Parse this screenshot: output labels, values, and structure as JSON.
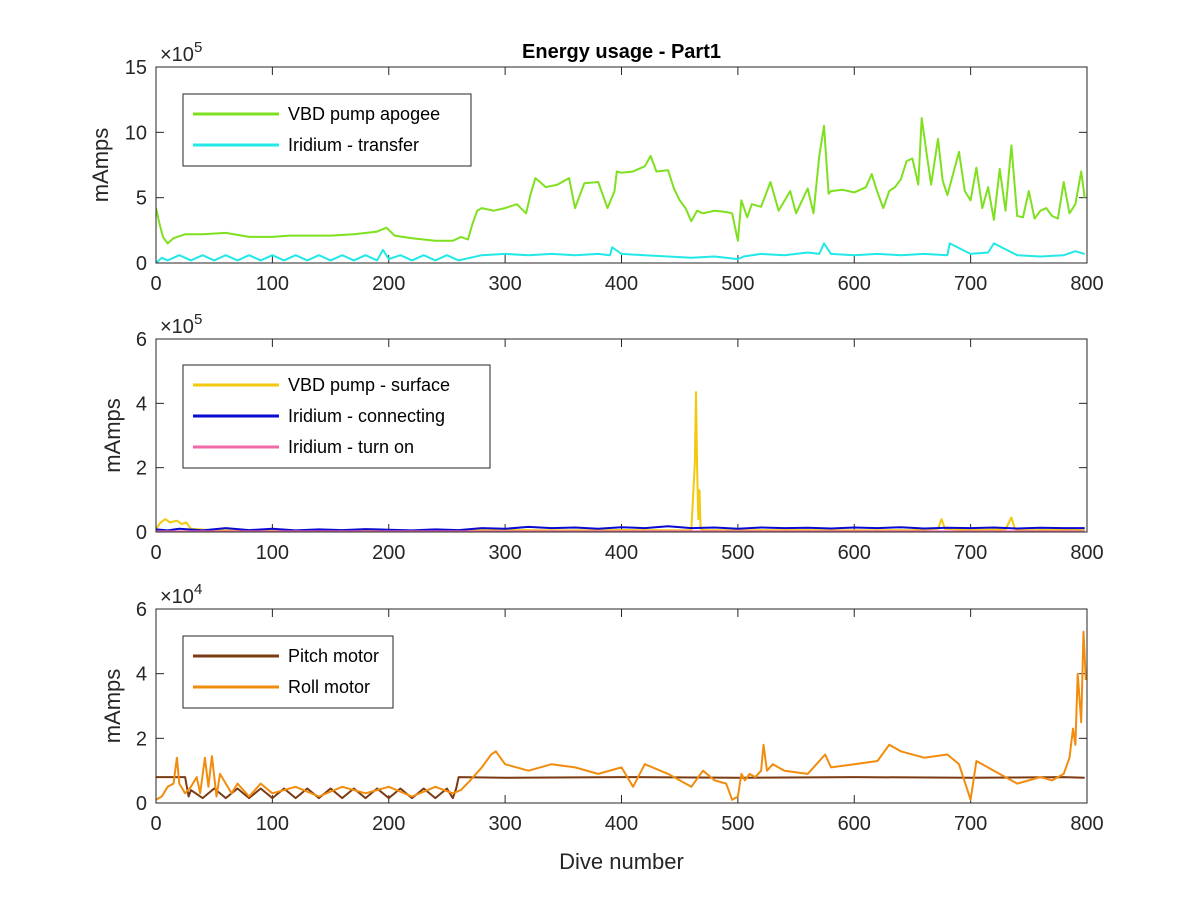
{
  "chart_data": [
    {
      "type": "line",
      "title": "Energy usage - Part1",
      "xlabel": "",
      "ylabel": "mAmps",
      "exponent": "5",
      "xlim": [
        0,
        800
      ],
      "ylim": [
        0,
        15
      ],
      "xticks": [
        "0",
        "100",
        "200",
        "300",
        "400",
        "500",
        "600",
        "700",
        "800"
      ],
      "yticks": [
        "0",
        "5",
        "10",
        "15"
      ],
      "grid": false,
      "legend_position": "top-left",
      "series": [
        {
          "name": "VBD pump apogee",
          "color": "#7fe01f",
          "x": [
            0,
            3,
            6,
            10,
            15,
            25,
            40,
            60,
            80,
            100,
            115,
            130,
            150,
            170,
            190,
            198,
            205,
            220,
            240,
            255,
            262,
            268,
            272,
            276,
            280,
            290,
            300,
            310,
            318,
            322,
            326,
            330,
            335,
            345,
            355,
            360,
            368,
            380,
            388,
            394,
            396,
            400,
            410,
            420,
            425,
            430,
            440,
            445,
            450,
            455,
            460,
            465,
            470,
            480,
            490,
            495,
            500,
            503,
            508,
            512,
            520,
            528,
            535,
            545,
            550,
            560,
            565,
            570,
            574,
            578,
            580,
            590,
            600,
            610,
            615,
            620,
            625,
            630,
            635,
            640,
            645,
            650,
            655,
            658,
            662,
            666,
            672,
            676,
            680,
            690,
            695,
            700,
            705,
            710,
            715,
            720,
            725,
            730,
            735,
            740,
            745,
            750,
            755,
            760,
            765,
            770,
            775,
            780,
            785,
            790,
            795,
            798
          ],
          "y": [
            4.2,
            3.0,
            2.0,
            1.5,
            1.9,
            2.2,
            2.2,
            2.3,
            2.0,
            2.0,
            2.1,
            2.1,
            2.1,
            2.2,
            2.4,
            2.7,
            2.1,
            1.9,
            1.7,
            1.7,
            2.0,
            1.8,
            3.0,
            4.0,
            4.2,
            4.0,
            4.2,
            4.5,
            3.8,
            5.3,
            6.5,
            6.2,
            5.8,
            6.0,
            6.5,
            4.2,
            6.1,
            6.2,
            4.2,
            5.5,
            7.0,
            6.9,
            7.0,
            7.4,
            8.2,
            7.0,
            7.1,
            5.7,
            4.8,
            4.2,
            3.2,
            4.0,
            3.8,
            4.0,
            3.9,
            3.8,
            1.7,
            4.8,
            3.5,
            4.5,
            4.3,
            6.2,
            4.0,
            5.5,
            3.8,
            5.7,
            3.8,
            8.2,
            10.5,
            5.3,
            5.5,
            5.6,
            5.4,
            5.8,
            6.8,
            5.4,
            4.2,
            5.5,
            5.8,
            6.4,
            7.8,
            8.0,
            6.0,
            11.1,
            8.5,
            6.0,
            9.5,
            6.3,
            5.2,
            8.5,
            5.5,
            4.8,
            7.3,
            4.2,
            5.8,
            3.3,
            7.2,
            4.0,
            9.0,
            3.6,
            3.5,
            5.5,
            3.4,
            4.0,
            4.2,
            3.6,
            3.4,
            6.2,
            3.8,
            4.5,
            7.0,
            5.0
          ]
        },
        {
          "name": "Iridium - transfer",
          "color": "#22e8e8",
          "x": [
            0,
            5,
            10,
            20,
            30,
            40,
            50,
            60,
            70,
            80,
            90,
            100,
            110,
            120,
            130,
            140,
            150,
            160,
            170,
            180,
            190,
            195,
            200,
            210,
            220,
            230,
            240,
            250,
            260,
            270,
            280,
            300,
            320,
            340,
            360,
            380,
            390,
            392,
            400,
            420,
            440,
            460,
            480,
            500,
            505,
            520,
            540,
            560,
            570,
            574,
            580,
            600,
            620,
            640,
            660,
            680,
            682,
            700,
            715,
            720,
            740,
            760,
            780,
            790,
            798
          ],
          "y": [
            0.0,
            0.4,
            0.2,
            0.6,
            0.2,
            0.6,
            0.2,
            0.6,
            0.2,
            0.6,
            0.2,
            0.6,
            0.2,
            0.6,
            0.2,
            0.6,
            0.2,
            0.6,
            0.2,
            0.6,
            0.2,
            1.0,
            0.3,
            0.6,
            0.2,
            0.6,
            0.2,
            0.6,
            0.2,
            0.4,
            0.6,
            0.7,
            0.6,
            0.7,
            0.6,
            0.7,
            0.6,
            1.2,
            0.7,
            0.6,
            0.5,
            0.4,
            0.5,
            0.3,
            0.5,
            0.7,
            0.6,
            0.8,
            0.7,
            1.5,
            0.7,
            0.6,
            0.7,
            0.6,
            0.7,
            0.6,
            1.5,
            0.7,
            0.8,
            1.5,
            0.6,
            0.5,
            0.6,
            0.9,
            0.7
          ]
        }
      ]
    },
    {
      "type": "line",
      "title": "",
      "xlabel": "",
      "ylabel": "mAmps",
      "exponent": "5",
      "xlim": [
        0,
        800
      ],
      "ylim": [
        0,
        6
      ],
      "xticks": [
        "0",
        "100",
        "200",
        "300",
        "400",
        "500",
        "600",
        "700",
        "800"
      ],
      "yticks": [
        "0",
        "2",
        "4",
        "6"
      ],
      "grid": false,
      "legend_position": "top-left",
      "series": [
        {
          "name": "VBD pump - surface",
          "color": "#f2c90c",
          "x": [
            0,
            4,
            8,
            12,
            18,
            22,
            26,
            30,
            50,
            100,
            150,
            200,
            250,
            300,
            350,
            400,
            450,
            460,
            463,
            464,
            465,
            466,
            467,
            468,
            470,
            500,
            550,
            600,
            650,
            672,
            675,
            678,
            700,
            730,
            735,
            738,
            740,
            760,
            780,
            798
          ],
          "y": [
            0.1,
            0.3,
            0.4,
            0.3,
            0.35,
            0.25,
            0.3,
            0.1,
            0.05,
            0.04,
            0.05,
            0.04,
            0.05,
            0.06,
            0.05,
            0.06,
            0.05,
            0.06,
            2.1,
            4.35,
            2.0,
            0.4,
            1.3,
            0.1,
            0.06,
            0.05,
            0.06,
            0.05,
            0.06,
            0.1,
            0.4,
            0.1,
            0.06,
            0.08,
            0.45,
            0.1,
            0.05,
            0.06,
            0.08,
            0.05
          ]
        },
        {
          "name": "Iridium - connecting",
          "color": "#0a0ad2",
          "x": [
            0,
            10,
            20,
            40,
            60,
            80,
            100,
            120,
            140,
            160,
            180,
            200,
            220,
            240,
            260,
            280,
            300,
            320,
            340,
            360,
            380,
            400,
            420,
            440,
            460,
            480,
            500,
            520,
            540,
            560,
            580,
            600,
            620,
            640,
            660,
            680,
            700,
            720,
            740,
            760,
            780,
            798
          ],
          "y": [
            0.08,
            0.05,
            0.1,
            0.05,
            0.12,
            0.06,
            0.1,
            0.05,
            0.08,
            0.06,
            0.09,
            0.07,
            0.05,
            0.08,
            0.06,
            0.12,
            0.1,
            0.16,
            0.12,
            0.14,
            0.1,
            0.15,
            0.12,
            0.18,
            0.12,
            0.14,
            0.1,
            0.14,
            0.12,
            0.13,
            0.11,
            0.14,
            0.12,
            0.15,
            0.11,
            0.13,
            0.12,
            0.14,
            0.11,
            0.13,
            0.12,
            0.12
          ]
        },
        {
          "name": "Iridium - turn on",
          "color": "#f06aa8",
          "x": [
            0,
            100,
            200,
            300,
            400,
            500,
            600,
            700,
            798
          ],
          "y": [
            0.02,
            0.02,
            0.02,
            0.02,
            0.02,
            0.02,
            0.02,
            0.02,
            0.02
          ]
        }
      ]
    },
    {
      "type": "line",
      "title": "",
      "xlabel": "Dive number",
      "ylabel": "mAmps",
      "exponent": "4",
      "xlim": [
        0,
        800
      ],
      "ylim": [
        0,
        6
      ],
      "xticks": [
        "0",
        "100",
        "200",
        "300",
        "400",
        "500",
        "600",
        "700",
        "800"
      ],
      "yticks": [
        "0",
        "2",
        "4",
        "6"
      ],
      "grid": false,
      "legend_position": "top-left",
      "series": [
        {
          "name": "Pitch motor",
          "color": "#7a3b12",
          "x": [
            0,
            25,
            28,
            30,
            40,
            50,
            60,
            70,
            80,
            90,
            100,
            110,
            120,
            130,
            140,
            150,
            160,
            170,
            180,
            190,
            200,
            210,
            220,
            230,
            240,
            250,
            255,
            258,
            260,
            300,
            400,
            500,
            600,
            700,
            780,
            798
          ],
          "y": [
            0.8,
            0.8,
            0.2,
            0.4,
            0.15,
            0.45,
            0.15,
            0.45,
            0.15,
            0.45,
            0.15,
            0.45,
            0.15,
            0.45,
            0.15,
            0.45,
            0.15,
            0.45,
            0.15,
            0.45,
            0.15,
            0.45,
            0.15,
            0.45,
            0.15,
            0.45,
            0.15,
            0.45,
            0.8,
            0.78,
            0.8,
            0.78,
            0.8,
            0.78,
            0.8,
            0.78
          ]
        },
        {
          "name": "Roll motor",
          "color": "#f28c0f",
          "x": [
            0,
            5,
            10,
            15,
            18,
            20,
            25,
            30,
            35,
            38,
            42,
            45,
            48,
            52,
            55,
            60,
            65,
            70,
            80,
            90,
            100,
            120,
            140,
            160,
            180,
            200,
            220,
            240,
            255,
            262,
            270,
            280,
            288,
            292,
            300,
            320,
            340,
            360,
            380,
            400,
            410,
            420,
            440,
            460,
            470,
            480,
            490,
            495,
            500,
            503,
            506,
            510,
            515,
            520,
            522,
            525,
            530,
            540,
            560,
            575,
            580,
            600,
            620,
            630,
            640,
            660,
            680,
            690,
            700,
            705,
            710,
            720,
            730,
            740,
            760,
            770,
            780,
            785,
            788,
            790,
            792,
            795,
            797,
            799
          ],
          "y": [
            0.1,
            0.2,
            0.5,
            0.6,
            1.4,
            0.6,
            0.3,
            0.5,
            0.8,
            0.3,
            1.4,
            0.5,
            1.45,
            0.2,
            0.9,
            0.6,
            0.3,
            0.6,
            0.2,
            0.6,
            0.3,
            0.5,
            0.2,
            0.5,
            0.3,
            0.5,
            0.2,
            0.5,
            0.3,
            0.4,
            0.7,
            1.1,
            1.5,
            1.6,
            1.2,
            1.0,
            1.2,
            1.1,
            0.9,
            1.1,
            0.5,
            1.2,
            0.9,
            0.5,
            1.0,
            0.7,
            0.6,
            0.1,
            0.2,
            0.9,
            0.7,
            0.9,
            0.8,
            1.0,
            1.8,
            1.0,
            1.2,
            1.0,
            0.9,
            1.5,
            1.1,
            1.2,
            1.3,
            1.8,
            1.6,
            1.4,
            1.5,
            1.2,
            0.1,
            1.3,
            1.2,
            1.0,
            0.8,
            0.6,
            0.8,
            0.7,
            0.9,
            1.4,
            2.3,
            1.8,
            4.0,
            2.5,
            5.3,
            3.8
          ]
        }
      ]
    }
  ]
}
